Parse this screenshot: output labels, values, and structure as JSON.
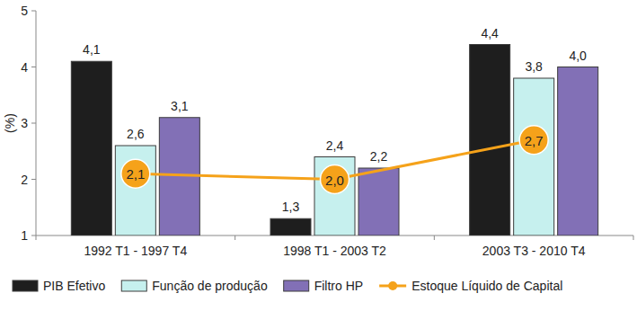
{
  "chart_data": {
    "type": "bar",
    "y_label": "(%)",
    "categories": [
      "1992 T1 - 1997 T4",
      "1998 T1 - 2003 T2",
      "2003 T3 - 2010 T4"
    ],
    "series": [
      {
        "name": "PIB Efetivo",
        "color": "#1e1e1e",
        "values": [
          4.1,
          1.3,
          4.4
        ],
        "value_labels": [
          "4,1",
          "1,3",
          "4,4"
        ]
      },
      {
        "name": "Função de produção",
        "color": "#c6f0ee",
        "values": [
          2.6,
          2.4,
          3.8
        ],
        "value_labels": [
          "2,6",
          "2,4",
          "3,8"
        ]
      },
      {
        "name": "Filtro HP",
        "color": "#8270b6",
        "values": [
          3.1,
          2.2,
          4.0
        ],
        "value_labels": [
          "3,1",
          "2,2",
          "4,0"
        ]
      },
      {
        "name": "Estoque Líquido de Capital",
        "color": "#f5a21a",
        "type": "line",
        "marker": "circle",
        "values": [
          2.1,
          2.0,
          2.7
        ],
        "value_labels": [
          "2,1",
          "2,0",
          "2,7"
        ]
      }
    ],
    "ylim": [
      1,
      5
    ],
    "yticks": [
      1,
      2,
      3,
      4,
      5
    ],
    "grid": false,
    "data_labels": true,
    "legend": "bottom"
  }
}
